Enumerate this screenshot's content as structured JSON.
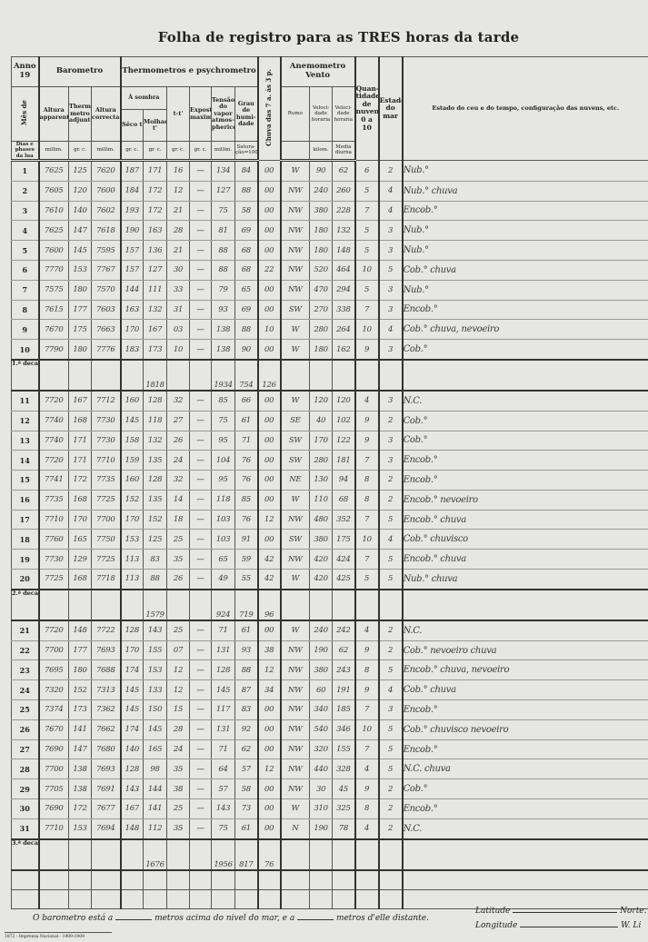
{
  "title": "Folha de registro para as TRES horas da tarde",
  "header": {
    "anno": "Anno",
    "anno_year": "19",
    "mes": "Mês de",
    "dias": "Dias e phases da lua",
    "barometro": "Barometro",
    "altura_apparente": "Altura apparente",
    "thermometro_adjunto": "Thermo-metro adjunto",
    "altura_correcta": "Altura correcta",
    "thermometros": "Thermometros e psychrometro",
    "a_sombra": "À sombra",
    "secco": "Sêco t",
    "molhado": "Molhado t'",
    "diff": "t-t'",
    "exposto": "Exposto maximo",
    "tensao": "Tensão do vapor atmos-pherico",
    "grau": "Grau de humi-dade",
    "chuva": "Chuva das 7 a. ás 3 p.",
    "anemometro": "Anemometro",
    "vento": "Vento",
    "rumo": "Rumo",
    "velocidade1": "Veloci-dade horaria",
    "velocidade2": "Veloci-dade horaria",
    "quantidade": "Quan-tidade de nuvens 0 a 10",
    "estado_mar": "Estado do mar",
    "estado_ceu": "Estado do ceu e do tempo, configuração das nuvens, etc.",
    "units": [
      "millim.",
      "gr. c.",
      "millim.",
      "gr. c.",
      "gr. c.",
      "gr. c.",
      "gr. c.",
      "millim.",
      "Satura-ção=100",
      "",
      "kilom.",
      "Media diurna"
    ]
  },
  "rows": [
    [
      "1",
      "7625",
      "125",
      "7620",
      "187",
      "171",
      "16",
      "—",
      "134",
      "84",
      "00",
      "W",
      "90",
      "62",
      "6",
      "2",
      "Nub.°"
    ],
    [
      "2",
      "7605",
      "120",
      "7600",
      "184",
      "172",
      "12",
      "—",
      "127",
      "88",
      "00",
      "NW",
      "240",
      "260",
      "5",
      "4",
      "Nub.° chuva"
    ],
    [
      "3",
      "7610",
      "140",
      "7602",
      "193",
      "172",
      "21",
      "—",
      "75",
      "58",
      "00",
      "NW",
      "380",
      "228",
      "7",
      "4",
      "Encob.°"
    ],
    [
      "4",
      "7625",
      "147",
      "7618",
      "190",
      "163",
      "28",
      "—",
      "81",
      "69",
      "00",
      "NW",
      "180",
      "132",
      "5",
      "3",
      "Nub.°"
    ],
    [
      "5",
      "7600",
      "145",
      "7595",
      "157",
      "136",
      "21",
      "—",
      "88",
      "68",
      "00",
      "NW",
      "180",
      "148",
      "5",
      "3",
      "Nub.°"
    ],
    [
      "6",
      "7770",
      "153",
      "7767",
      "157",
      "127",
      "30",
      "—",
      "88",
      "68",
      "22",
      "NW",
      "520",
      "464",
      "10",
      "5",
      "Cob.° chuva"
    ],
    [
      "7",
      "7575",
      "180",
      "7570",
      "144",
      "111",
      "33",
      "—",
      "79",
      "65",
      "00",
      "NW",
      "470",
      "294",
      "5",
      "3",
      "Nub.°"
    ],
    [
      "8",
      "7615",
      "177",
      "7603",
      "163",
      "132",
      "31",
      "—",
      "93",
      "69",
      "00",
      "SW",
      "270",
      "338",
      "7",
      "3",
      "Encob.°"
    ],
    [
      "9",
      "7670",
      "175",
      "7663",
      "170",
      "167",
      "03",
      "—",
      "138",
      "88",
      "10",
      "W",
      "280",
      "264",
      "10",
      "4",
      "Cob.° chuva, nevoeiro"
    ],
    [
      "10",
      "7790",
      "180",
      "7776",
      "183",
      "173",
      "10",
      "—",
      "138",
      "90",
      "00",
      "W",
      "180",
      "162",
      "9",
      "3",
      "Cob.°"
    ]
  ],
  "rows2": [
    [
      "11",
      "7720",
      "167",
      "7712",
      "160",
      "128",
      "32",
      "—",
      "85",
      "66",
      "00",
      "W",
      "120",
      "120",
      "4",
      "3",
      "N.C."
    ],
    [
      "12",
      "7740",
      "168",
      "7730",
      "145",
      "118",
      "27",
      "—",
      "75",
      "61",
      "00",
      "SE",
      "40",
      "102",
      "9",
      "2",
      "Cob.°"
    ],
    [
      "13",
      "7740",
      "171",
      "7730",
      "158",
      "132",
      "26",
      "—",
      "95",
      "71",
      "00",
      "SW",
      "170",
      "122",
      "9",
      "3",
      "Cob.°"
    ],
    [
      "14",
      "7720",
      "171",
      "7710",
      "159",
      "135",
      "24",
      "—",
      "104",
      "76",
      "00",
      "SW",
      "280",
      "181",
      "7",
      "3",
      "Encob.°"
    ],
    [
      "15",
      "7741",
      "172",
      "7735",
      "160",
      "128",
      "32",
      "—",
      "95",
      "76",
      "00",
      "NE",
      "130",
      "94",
      "8",
      "2",
      "Encob.°"
    ],
    [
      "16",
      "7735",
      "168",
      "7725",
      "152",
      "135",
      "14",
      "—",
      "118",
      "85",
      "00",
      "W",
      "110",
      "68",
      "8",
      "2",
      "Encob.° nevoeiro"
    ],
    [
      "17",
      "7710",
      "170",
      "7700",
      "170",
      "152",
      "18",
      "—",
      "103",
      "76",
      "12",
      "NW",
      "480",
      "352",
      "7",
      "5",
      "Encob.° chuva"
    ],
    [
      "18",
      "7760",
      "165",
      "7750",
      "153",
      "125",
      "25",
      "—",
      "103",
      "91",
      "00",
      "SW",
      "380",
      "175",
      "10",
      "4",
      "Cob.° chuvisco"
    ],
    [
      "19",
      "7730",
      "129",
      "7725",
      "113",
      "83",
      "35",
      "—",
      "65",
      "59",
      "42",
      "NW",
      "420",
      "424",
      "7",
      "5",
      "Encob.° chuva"
    ],
    [
      "20",
      "7725",
      "168",
      "7718",
      "113",
      "88",
      "26",
      "—",
      "49",
      "55",
      "42",
      "W",
      "420",
      "425",
      "5",
      "5",
      "Nub.° chuva"
    ]
  ],
  "rows3": [
    [
      "21",
      "7720",
      "148",
      "7722",
      "128",
      "143",
      "25",
      "—",
      "71",
      "61",
      "00",
      "W",
      "240",
      "242",
      "4",
      "2",
      "N.C."
    ],
    [
      "22",
      "7700",
      "177",
      "7693",
      "170",
      "155",
      "07",
      "—",
      "131",
      "93",
      "38",
      "NW",
      "190",
      "62",
      "9",
      "2",
      "Cob.° nevoeiro chuva"
    ],
    [
      "23",
      "7695",
      "180",
      "7688",
      "174",
      "153",
      "12",
      "—",
      "128",
      "88",
      "12",
      "NW",
      "380",
      "243",
      "8",
      "5",
      "Encob.° chuva, nevoeiro"
    ],
    [
      "24",
      "7320",
      "152",
      "7313",
      "145",
      "133",
      "12",
      "—",
      "145",
      "87",
      "34",
      "NW",
      "60",
      "191",
      "9",
      "4",
      "Cob.° chuva"
    ],
    [
      "25",
      "7374",
      "173",
      "7362",
      "145",
      "150",
      "15",
      "—",
      "117",
      "83",
      "00",
      "NW",
      "340",
      "185",
      "7",
      "3",
      "Encob.°"
    ],
    [
      "26",
      "7670",
      "141",
      "7662",
      "174",
      "145",
      "28",
      "—",
      "131",
      "92",
      "00",
      "NW",
      "540",
      "346",
      "10",
      "5",
      "Cob.° chuvisco nevoeiro"
    ],
    [
      "27",
      "7690",
      "147",
      "7680",
      "140",
      "165",
      "24",
      "—",
      "71",
      "62",
      "00",
      "NW",
      "320",
      "155",
      "7",
      "5",
      "Encob.°"
    ],
    [
      "28",
      "7700",
      "138",
      "7693",
      "128",
      "98",
      "35",
      "—",
      "64",
      "57",
      "12",
      "NW",
      "440",
      "328",
      "4",
      "5",
      "N.C. chuva"
    ],
    [
      "29",
      "7705",
      "138",
      "7691",
      "143",
      "144",
      "38",
      "—",
      "57",
      "58",
      "00",
      "NW",
      "30",
      "45",
      "9",
      "2",
      "Cob.°"
    ],
    [
      "30",
      "7690",
      "172",
      "7677",
      "167",
      "141",
      "25",
      "—",
      "143",
      "73",
      "00",
      "W",
      "310",
      "325",
      "8",
      "2",
      "Encob.°"
    ],
    [
      "31",
      "7710",
      "153",
      "7694",
      "148",
      "112",
      "35",
      "—",
      "75",
      "61",
      "00",
      "N",
      "190",
      "78",
      "4",
      "2",
      "N.C."
    ]
  ],
  "decades": [
    {
      "label": "1.ª decada",
      "secco": "1818",
      "tensao": "1934",
      "grau": "754",
      "chuva": "126"
    },
    {
      "label": "2.ª decada",
      "secco": "1579",
      "tensao": "924",
      "grau": "719",
      "chuva": "96"
    },
    {
      "label": "3.ª decada",
      "secco": "1676",
      "tensao": "1956",
      "grau": "817",
      "chuva": "76"
    }
  ],
  "footer": {
    "barometro_a": "O barometro está a",
    "metros_acima": "metros acima do nivel do mar, e a",
    "metros_distante": "metros d'elle distante.",
    "latitude": "Latitude",
    "norte": "Norte.",
    "longitude": "Longitude",
    "w": "W. Li",
    "imprint": "1872 - Imprensa Nacional - 1909-1909"
  }
}
